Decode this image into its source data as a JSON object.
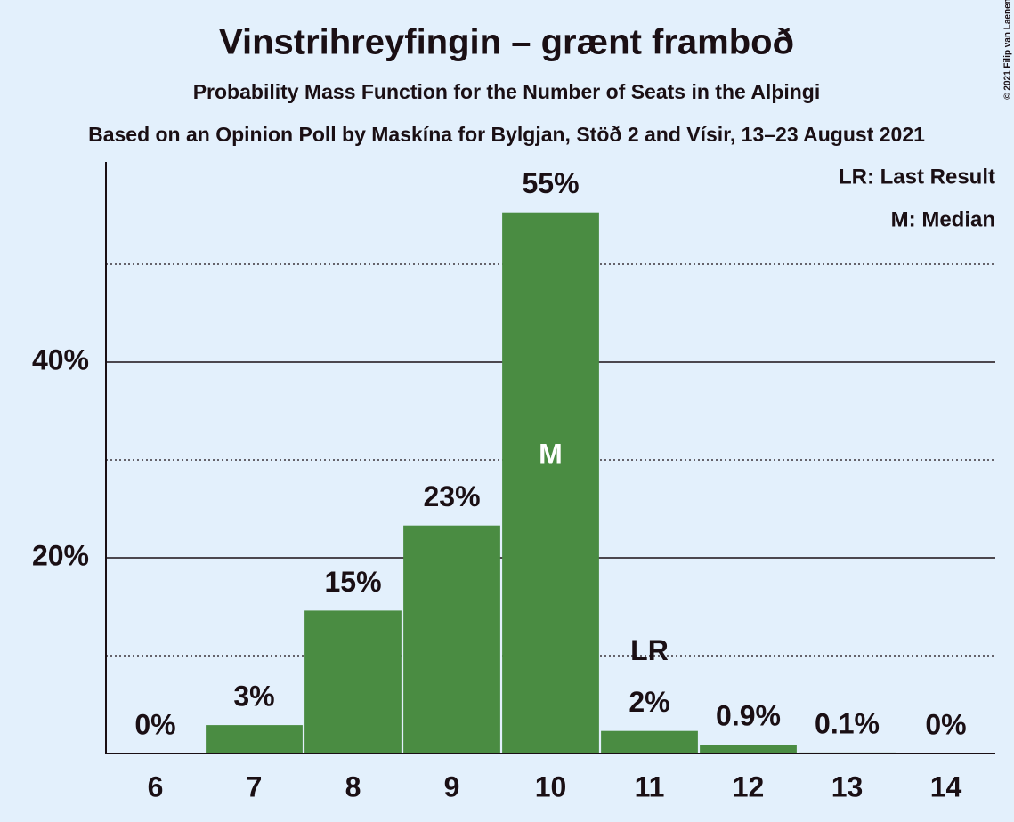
{
  "chart_data": {
    "type": "bar",
    "title": "Vinstrihreyfingin – grænt framboð",
    "subtitle": "Probability Mass Function for the Number of Seats in the Alþingi",
    "source": "Based on an Opinion Poll by Maskína for Bylgjan, Stöð 2 and Vísir, 13–23 August 2021",
    "copyright": "© 2021 Filip van Laenen",
    "categories": [
      "6",
      "7",
      "8",
      "9",
      "10",
      "11",
      "12",
      "13",
      "14"
    ],
    "values": [
      0,
      2.9,
      14.6,
      23.3,
      55.3,
      2.3,
      0.9,
      0.1,
      0
    ],
    "value_labels": [
      "0%",
      "3%",
      "15%",
      "23%",
      "55%",
      "2%",
      "0.9%",
      "0.1%",
      "0%"
    ],
    "color": "#4a8c42",
    "ylim": [
      0,
      60
    ],
    "yticks": [
      {
        "value": 20,
        "label": "20%"
      },
      {
        "value": 40,
        "label": "40%"
      }
    ],
    "minor_grid": [
      10,
      30,
      50
    ],
    "grid": true,
    "annotations": [
      {
        "text": "M",
        "at": "10",
        "inside": true
      },
      {
        "text": "LR",
        "at": "11",
        "inside": false
      }
    ],
    "legend": [
      "LR: Last Result",
      "M: Median"
    ]
  }
}
